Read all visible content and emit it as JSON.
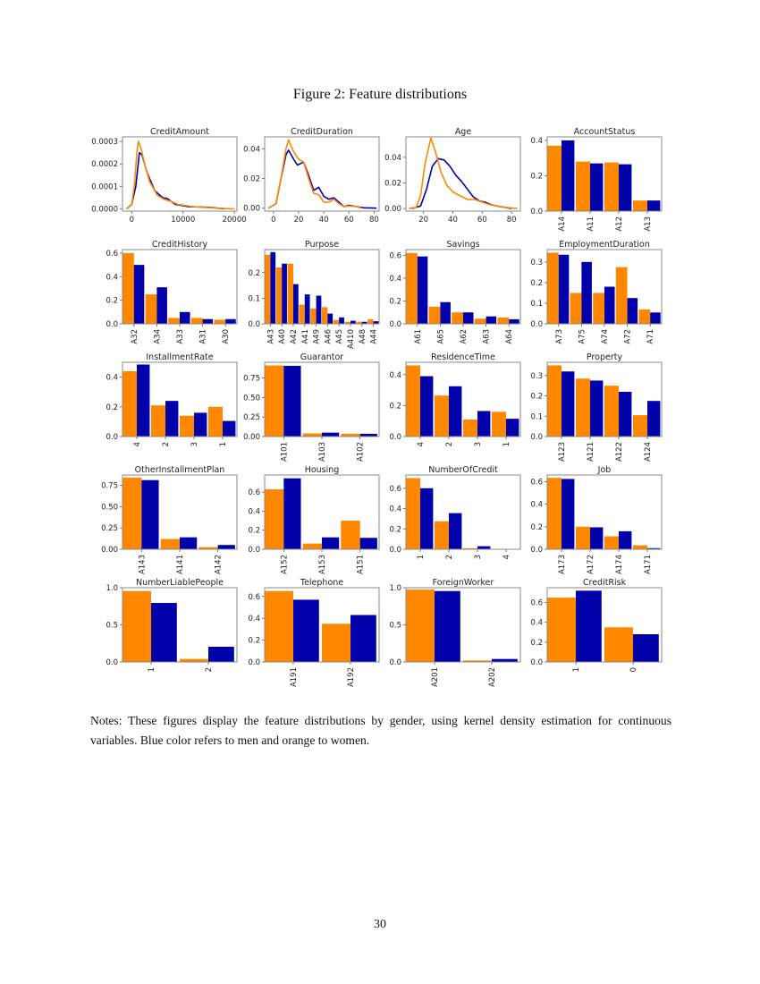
{
  "figure_title": "Figure 2: Feature distributions",
  "notes": "Notes: These figures display the feature distributions by gender, using kernel density estimation for continuous variables. Blue color refers to men and orange to women.",
  "page_number": "30",
  "colors": {
    "women": "#ff8800",
    "men": "#0000aa",
    "frame": "#888888"
  },
  "chart_data": [
    {
      "type": "line",
      "title": "CreditAmount",
      "xlim": [
        -1800,
        20500
      ],
      "ylim": [
        -1e-05,
        0.00032
      ],
      "xticks": [
        0,
        10000,
        20000
      ],
      "xtick_labels": [
        "0",
        "10000",
        "20000"
      ],
      "yticks": [
        0,
        0.0001,
        0.0002,
        0.0003
      ],
      "ytick_labels": [
        "0.0000",
        "0.0001",
        "0.0002",
        "0.0003"
      ],
      "series": [
        {
          "gender": "men",
          "points": [
            [
              -1000,
              0
            ],
            [
              0,
              2e-05
            ],
            [
              800,
              0.0001
            ],
            [
              1500,
              0.00025
            ],
            [
              2000,
              0.00024
            ],
            [
              3000,
              0.00016
            ],
            [
              4500,
              8e-05
            ],
            [
              6000,
              5e-05
            ],
            [
              7000,
              4.5e-05
            ],
            [
              8500,
              2e-05
            ],
            [
              11000,
              1e-05
            ],
            [
              14000,
              8e-06
            ],
            [
              16000,
              5e-06
            ],
            [
              18000,
              0
            ]
          ]
        },
        {
          "gender": "women",
          "points": [
            [
              -1000,
              0
            ],
            [
              0,
              2e-05
            ],
            [
              500,
              0.0001
            ],
            [
              1000,
              0.00025
            ],
            [
              1300,
              0.0003
            ],
            [
              1800,
              0.00027
            ],
            [
              2500,
              0.0002
            ],
            [
              3500,
              0.00012
            ],
            [
              5000,
              6e-05
            ],
            [
              6500,
              4e-05
            ],
            [
              7500,
              3.5e-05
            ],
            [
              9000,
              2e-05
            ],
            [
              12000,
              1e-05
            ],
            [
              15000,
              5e-06
            ],
            [
              18000,
              2e-06
            ],
            [
              20000,
              0
            ]
          ]
        }
      ]
    },
    {
      "type": "line",
      "title": "CreditDuration",
      "xlim": [
        -7,
        84
      ],
      "ylim": [
        -0.002,
        0.048
      ],
      "xticks": [
        0,
        20,
        40,
        60,
        80
      ],
      "xtick_labels": [
        "0",
        "20",
        "40",
        "60",
        "80"
      ],
      "yticks": [
        0,
        0.02,
        0.04
      ],
      "ytick_labels": [
        "0.00",
        "0.02",
        "0.04"
      ],
      "series": [
        {
          "gender": "men",
          "points": [
            [
              -4,
              0
            ],
            [
              2,
              0.003
            ],
            [
              6,
              0.02
            ],
            [
              10,
              0.036
            ],
            [
              12,
              0.039
            ],
            [
              16,
              0.033
            ],
            [
              19,
              0.029
            ],
            [
              24,
              0.031
            ],
            [
              28,
              0.022
            ],
            [
              32,
              0.012
            ],
            [
              36,
              0.014
            ],
            [
              40,
              0.008
            ],
            [
              44,
              0.006
            ],
            [
              48,
              0.007
            ],
            [
              52,
              0.004
            ],
            [
              56,
              0.001
            ],
            [
              60,
              0.002
            ],
            [
              66,
              0.001
            ],
            [
              72,
              0.0002
            ],
            [
              82,
              0
            ]
          ]
        },
        {
          "gender": "women",
          "points": [
            [
              -4,
              0
            ],
            [
              2,
              0.003
            ],
            [
              6,
              0.02
            ],
            [
              10,
              0.04
            ],
            [
              12,
              0.046
            ],
            [
              16,
              0.038
            ],
            [
              20,
              0.033
            ],
            [
              24,
              0.031
            ],
            [
              28,
              0.02
            ],
            [
              32,
              0.01
            ],
            [
              36,
              0.009
            ],
            [
              40,
              0.004
            ],
            [
              44,
              0.004
            ],
            [
              48,
              0.006
            ],
            [
              52,
              0.003
            ],
            [
              56,
              0.001
            ],
            [
              60,
              0.0015
            ],
            [
              66,
              0.001
            ],
            [
              70,
              0
            ]
          ]
        }
      ]
    },
    {
      "type": "line",
      "title": "Age",
      "xlim": [
        8,
        86
      ],
      "ylim": [
        -0.002,
        0.056
      ],
      "xticks": [
        20,
        40,
        60,
        80
      ],
      "xtick_labels": [
        "20",
        "40",
        "60",
        "80"
      ],
      "yticks": [
        0,
        0.02,
        0.04
      ],
      "ytick_labels": [
        "0.00",
        "0.02",
        "0.04"
      ],
      "series": [
        {
          "gender": "men",
          "points": [
            [
              12,
              0
            ],
            [
              18,
              0.002
            ],
            [
              22,
              0.015
            ],
            [
              26,
              0.033
            ],
            [
              30,
              0.039
            ],
            [
              34,
              0.038
            ],
            [
              38,
              0.033
            ],
            [
              42,
              0.026
            ],
            [
              46,
              0.021
            ],
            [
              50,
              0.015
            ],
            [
              54,
              0.009
            ],
            [
              58,
              0.006
            ],
            [
              62,
              0.005
            ],
            [
              66,
              0.003
            ],
            [
              70,
              0.002
            ],
            [
              75,
              0.001
            ],
            [
              80,
              0
            ]
          ]
        },
        {
          "gender": "women",
          "points": [
            [
              10,
              0
            ],
            [
              15,
              0.001
            ],
            [
              18,
              0.01
            ],
            [
              21,
              0.035
            ],
            [
              25,
              0.055
            ],
            [
              28,
              0.045
            ],
            [
              32,
              0.028
            ],
            [
              36,
              0.018
            ],
            [
              40,
              0.013
            ],
            [
              45,
              0.01
            ],
            [
              50,
              0.007
            ],
            [
              55,
              0.007
            ],
            [
              60,
              0.005
            ],
            [
              65,
              0.003
            ],
            [
              70,
              0.002
            ],
            [
              75,
              0.001
            ],
            [
              84,
              0
            ]
          ]
        }
      ]
    },
    {
      "type": "bar",
      "title": "AccountStatus",
      "ylim": [
        0,
        0.42
      ],
      "yticks": [
        0,
        0.2,
        0.4
      ],
      "ytick_labels": [
        "0.0",
        "0.2",
        "0.4"
      ],
      "categories": [
        "A14",
        "A11",
        "A12",
        "A13"
      ],
      "women": [
        0.37,
        0.28,
        0.275,
        0.06
      ],
      "men": [
        0.4,
        0.27,
        0.265,
        0.06
      ]
    },
    {
      "type": "bar",
      "title": "CreditHistory",
      "ylim": [
        0,
        0.63
      ],
      "yticks": [
        0,
        0.2,
        0.4,
        0.6
      ],
      "ytick_labels": [
        "0.0",
        "0.2",
        "0.4",
        "0.6"
      ],
      "categories": [
        "A32",
        "A34",
        "A33",
        "A31",
        "A30"
      ],
      "women": [
        0.6,
        0.25,
        0.05,
        0.05,
        0.035
      ],
      "men": [
        0.5,
        0.31,
        0.1,
        0.04,
        0.04
      ]
    },
    {
      "type": "bar",
      "title": "Purpose",
      "ylim": [
        0,
        0.29
      ],
      "yticks": [
        0,
        0.1,
        0.2
      ],
      "ytick_labels": [
        "0.0",
        "0.1",
        "0.2"
      ],
      "categories": [
        "A43",
        "A40",
        "A42",
        "A41",
        "A49",
        "A46",
        "A45",
        "A410",
        "A48",
        "A44"
      ],
      "women": [
        0.27,
        0.22,
        0.235,
        0.075,
        0.06,
        0.065,
        0.015,
        0.008,
        0.008,
        0.018
      ],
      "men": [
        0.28,
        0.235,
        0.155,
        0.115,
        0.11,
        0.04,
        0.025,
        0.012,
        0.008,
        0.01
      ]
    },
    {
      "type": "bar",
      "title": "Savings",
      "ylim": [
        0,
        0.65
      ],
      "yticks": [
        0,
        0.2,
        0.4,
        0.6
      ],
      "ytick_labels": [
        "0.0",
        "0.2",
        "0.4",
        "0.6"
      ],
      "categories": [
        "A61",
        "A65",
        "A62",
        "A63",
        "A64"
      ],
      "women": [
        0.62,
        0.15,
        0.1,
        0.045,
        0.055
      ],
      "men": [
        0.59,
        0.19,
        0.1,
        0.065,
        0.04
      ]
    },
    {
      "type": "bar",
      "title": "EmploymentDuration",
      "ylim": [
        0,
        0.36
      ],
      "yticks": [
        0,
        0.1,
        0.2,
        0.3
      ],
      "ytick_labels": [
        "0.0",
        "0.1",
        "0.2",
        "0.3"
      ],
      "categories": [
        "A73",
        "A75",
        "A74",
        "A72",
        "A71"
      ],
      "women": [
        0.345,
        0.15,
        0.15,
        0.275,
        0.07
      ],
      "men": [
        0.335,
        0.3,
        0.18,
        0.125,
        0.055
      ]
    },
    {
      "type": "bar",
      "title": "InstallmentRate",
      "ylim": [
        0,
        0.5
      ],
      "yticks": [
        0,
        0.2,
        0.4
      ],
      "ytick_labels": [
        "0.0",
        "0.2",
        "0.4"
      ],
      "categories": [
        "4",
        "2",
        "3",
        "1"
      ],
      "women": [
        0.44,
        0.21,
        0.14,
        0.2
      ],
      "men": [
        0.485,
        0.24,
        0.16,
        0.105
      ]
    },
    {
      "type": "bar",
      "title": "Guarantor",
      "ylim": [
        0,
        0.95
      ],
      "yticks": [
        0,
        0.25,
        0.5,
        0.75
      ],
      "ytick_labels": [
        "0.00",
        "0.25",
        "0.50",
        "0.75"
      ],
      "categories": [
        "A101",
        "A103",
        "A102"
      ],
      "women": [
        0.91,
        0.04,
        0.035
      ],
      "men": [
        0.905,
        0.05,
        0.035
      ]
    },
    {
      "type": "bar",
      "title": "ResidenceTime",
      "ylim": [
        0,
        0.48
      ],
      "yticks": [
        0,
        0.2,
        0.4
      ],
      "ytick_labels": [
        "0.0",
        "0.2",
        "0.4"
      ],
      "categories": [
        "4",
        "2",
        "3",
        "1"
      ],
      "women": [
        0.46,
        0.265,
        0.11,
        0.16
      ],
      "men": [
        0.39,
        0.325,
        0.165,
        0.115
      ]
    },
    {
      "type": "bar",
      "title": "Property",
      "ylim": [
        0,
        0.365
      ],
      "yticks": [
        0,
        0.1,
        0.2,
        0.3
      ],
      "ytick_labels": [
        "0.0",
        "0.1",
        "0.2",
        "0.3"
      ],
      "categories": [
        "A123",
        "A121",
        "A122",
        "A124"
      ],
      "women": [
        0.35,
        0.285,
        0.25,
        0.105
      ],
      "men": [
        0.32,
        0.275,
        0.22,
        0.175
      ]
    },
    {
      "type": "bar",
      "title": "OtherInstallmentPlan",
      "ylim": [
        0,
        0.87
      ],
      "yticks": [
        0,
        0.25,
        0.5,
        0.75
      ],
      "ytick_labels": [
        "0.00",
        "0.25",
        "0.50",
        "0.75"
      ],
      "categories": [
        "A143",
        "A141",
        "A142"
      ],
      "women": [
        0.84,
        0.12,
        0.025
      ],
      "men": [
        0.81,
        0.14,
        0.05
      ]
    },
    {
      "type": "bar",
      "title": "Housing",
      "ylim": [
        0,
        0.78
      ],
      "yticks": [
        0,
        0.2,
        0.4,
        0.6
      ],
      "ytick_labels": [
        "0.0",
        "0.2",
        "0.4",
        "0.6"
      ],
      "categories": [
        "A152",
        "A153",
        "A151"
      ],
      "women": [
        0.63,
        0.06,
        0.3
      ],
      "men": [
        0.745,
        0.125,
        0.12
      ]
    },
    {
      "type": "bar",
      "title": "NumberOfCredit",
      "ylim": [
        0,
        0.73
      ],
      "yticks": [
        0,
        0.2,
        0.4,
        0.6
      ],
      "ytick_labels": [
        "0.0",
        "0.2",
        "0.4",
        "0.6"
      ],
      "categories": [
        "1",
        "2",
        "3",
        "4"
      ],
      "women": [
        0.7,
        0.275,
        0.01,
        0.002
      ],
      "men": [
        0.6,
        0.355,
        0.03,
        0.003
      ]
    },
    {
      "type": "bar",
      "title": "Job",
      "ylim": [
        0,
        0.66
      ],
      "yticks": [
        0,
        0.2,
        0.4,
        0.6
      ],
      "ytick_labels": [
        "0.0",
        "0.2",
        "0.4",
        "0.6"
      ],
      "categories": [
        "A173",
        "A172",
        "A174",
        "A171"
      ],
      "women": [
        0.635,
        0.2,
        0.115,
        0.035
      ],
      "men": [
        0.625,
        0.195,
        0.16,
        0.01
      ]
    },
    {
      "type": "bar",
      "title": "NumberLiablePeople",
      "ylim": [
        0,
        1.0
      ],
      "yticks": [
        0,
        0.5,
        1.0
      ],
      "ytick_labels": [
        "0.0",
        "0.5",
        "1.0"
      ],
      "categories": [
        "1",
        "2"
      ],
      "women": [
        0.955,
        0.04
      ],
      "men": [
        0.795,
        0.205
      ]
    },
    {
      "type": "bar",
      "title": "Telephone",
      "ylim": [
        0,
        0.68
      ],
      "yticks": [
        0,
        0.2,
        0.4,
        0.6
      ],
      "ytick_labels": [
        "0.0",
        "0.2",
        "0.4",
        "0.6"
      ],
      "categories": [
        "A191",
        "A192"
      ],
      "women": [
        0.65,
        0.35
      ],
      "men": [
        0.57,
        0.43
      ]
    },
    {
      "type": "bar",
      "title": "ForeignWorker",
      "ylim": [
        0,
        1.0
      ],
      "yticks": [
        0,
        0.5,
        1.0
      ],
      "ytick_labels": [
        "0.0",
        "0.5",
        "1.0"
      ],
      "categories": [
        "A201",
        "A202"
      ],
      "women": [
        0.975,
        0.02
      ],
      "men": [
        0.955,
        0.04
      ]
    },
    {
      "type": "bar",
      "title": "CreditRisk",
      "ylim": [
        0,
        0.75
      ],
      "yticks": [
        0,
        0.2,
        0.4,
        0.6
      ],
      "ytick_labels": [
        "0.0",
        "0.2",
        "0.4",
        "0.6"
      ],
      "categories": [
        "1",
        "0"
      ],
      "women": [
        0.65,
        0.35
      ],
      "men": [
        0.72,
        0.28
      ]
    }
  ]
}
